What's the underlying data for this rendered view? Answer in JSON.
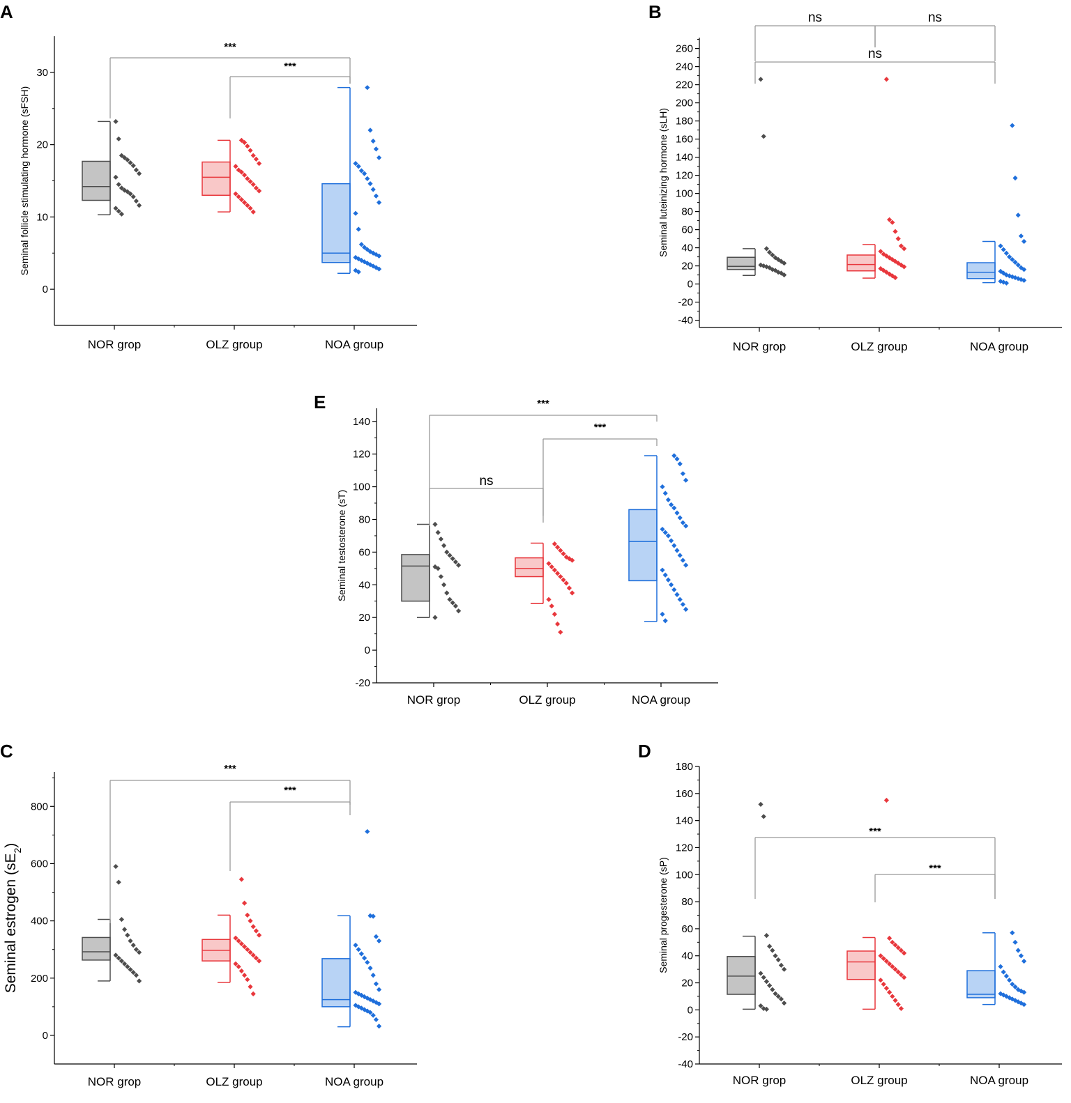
{
  "chart_data": [
    {
      "panel": "A",
      "type": "box-scatter",
      "ylabel": "Seminal follicle stimulating hormone (sFSH)",
      "ylim": [
        -5,
        35
      ],
      "yticks": [
        0,
        10,
        20,
        30
      ],
      "categories": [
        "NOR grop",
        "OLZ group",
        "NOA group"
      ],
      "colors": [
        "#4d4d4d",
        "#e8373c",
        "#1f6fdb"
      ],
      "fills": [
        "#c4c4c4",
        "#f9c8c8",
        "#b8d3f5"
      ],
      "boxes": [
        {
          "min": 10.3,
          "q1": 12.3,
          "median": 14.2,
          "q3": 17.7,
          "max": 23.2
        },
        {
          "min": 10.7,
          "q1": 13.0,
          "median": 15.5,
          "q3": 17.6,
          "max": 20.6
        },
        {
          "min": 2.2,
          "q1": 3.7,
          "median": 5.0,
          "q3": 14.6,
          "max": 27.9
        }
      ],
      "points": [
        [
          23.2,
          20.8,
          18.5,
          18.2,
          17.9,
          17.5,
          17.1,
          16.5,
          16.0,
          15.5,
          14.5,
          14.0,
          13.7,
          13.5,
          13.2,
          12.8,
          12.2,
          11.6,
          11.2,
          10.8,
          10.4
        ],
        [
          20.6,
          20.3,
          19.8,
          19.2,
          18.5,
          18.0,
          17.4,
          17.0,
          16.5,
          16.2,
          15.8,
          15.3,
          14.9,
          14.5,
          14.0,
          13.6,
          13.2,
          12.8,
          12.4,
          12.0,
          11.6,
          11.2,
          10.7
        ],
        [
          27.9,
          22.0,
          20.5,
          19.4,
          18.2,
          17.4,
          17.0,
          16.4,
          16.0,
          15.3,
          14.6,
          13.8,
          12.9,
          12.0,
          10.5,
          8.3,
          6.2,
          5.8,
          5.5,
          5.2,
          5.0,
          4.8,
          4.6,
          4.4,
          4.2,
          4.0,
          3.8,
          3.6,
          3.4,
          3.2,
          3.0,
          2.8,
          2.6,
          2.4
        ]
      ],
      "comparisons": [
        {
          "from": 0,
          "to": 2,
          "label": "***"
        },
        {
          "from": 1,
          "to": 2,
          "label": "***"
        }
      ]
    },
    {
      "panel": "B",
      "type": "box-scatter",
      "ylabel": "Seminal luteinizing hormone (sLH)",
      "ylim": [
        -48,
        272
      ],
      "yticks": [
        -40,
        -20,
        0,
        20,
        40,
        60,
        80,
        100,
        120,
        140,
        160,
        180,
        200,
        220,
        240,
        260
      ],
      "categories": [
        "NOR grop",
        "OLZ group",
        "NOA group"
      ],
      "colors": [
        "#4d4d4d",
        "#e8373c",
        "#1f6fdb"
      ],
      "fills": [
        "#c4c4c4",
        "#f9c8c8",
        "#b8d3f5"
      ],
      "boxes": [
        {
          "min": 9.5,
          "q1": 16.0,
          "median": 19.5,
          "q3": 29.5,
          "max": 39.0
        },
        {
          "min": 6.5,
          "q1": 14.5,
          "median": 21.5,
          "q3": 32.0,
          "max": 43.5
        },
        {
          "min": 1.5,
          "q1": 6.0,
          "median": 13.0,
          "q3": 23.5,
          "max": 47.0
        }
      ],
      "points": [
        [
          226,
          163,
          39,
          35,
          32,
          29,
          27,
          25,
          23,
          21,
          20,
          19,
          18,
          16,
          15,
          13,
          12,
          10
        ],
        [
          226,
          71,
          68,
          58,
          50,
          42,
          39,
          36,
          33,
          31,
          29,
          27,
          25,
          23,
          21,
          19,
          17,
          15,
          13,
          11,
          9,
          7
        ],
        [
          175,
          117,
          76,
          53,
          47,
          42,
          38,
          34,
          30,
          27,
          24,
          21,
          18,
          16,
          14,
          12,
          10,
          9,
          8,
          7,
          6,
          5,
          4,
          3,
          2,
          1
        ]
      ],
      "comparisons": [
        {
          "from": 0,
          "to": 1,
          "label": "ns"
        },
        {
          "from": 1,
          "to": 2,
          "label": "ns"
        },
        {
          "from": 0,
          "to": 2,
          "label": "ns"
        }
      ]
    },
    {
      "panel": "E",
      "type": "box-scatter",
      "ylabel": "Seminal testosterone (sT)",
      "ylim": [
        -20,
        148
      ],
      "yticks": [
        -20,
        0,
        20,
        40,
        60,
        80,
        100,
        120,
        140
      ],
      "categories": [
        "NOR grop",
        "OLZ group",
        "NOA group"
      ],
      "colors": [
        "#4d4d4d",
        "#e8373c",
        "#1f6fdb"
      ],
      "fills": [
        "#c4c4c4",
        "#f9c8c8",
        "#b8d3f5"
      ],
      "boxes": [
        {
          "min": 20.0,
          "q1": 30.0,
          "median": 51.5,
          "q3": 58.5,
          "max": 77.0
        },
        {
          "min": 28.5,
          "q1": 45.0,
          "median": 50.0,
          "q3": 56.5,
          "max": 65.5
        },
        {
          "min": 17.5,
          "q1": 42.5,
          "median": 66.5,
          "q3": 86.0,
          "max": 119.0
        }
      ],
      "points": [
        [
          77,
          72,
          68,
          64,
          60,
          58,
          56,
          54,
          52,
          51,
          50,
          45,
          40,
          35,
          31,
          29,
          27,
          24,
          20
        ],
        [
          65,
          63,
          61,
          59,
          57,
          56,
          55,
          53,
          51,
          49,
          47,
          45,
          43,
          41,
          38,
          35,
          31,
          27,
          22,
          16,
          11
        ],
        [
          119,
          117,
          114,
          108,
          104,
          100,
          96,
          92,
          89,
          87,
          84,
          81,
          78,
          76,
          74,
          72,
          70,
          67,
          64,
          61,
          58,
          55,
          52,
          49,
          46,
          43,
          40,
          37,
          34,
          31,
          28,
          25,
          22,
          18
        ]
      ],
      "comparisons": [
        {
          "from": 0,
          "to": 2,
          "label": "***"
        },
        {
          "from": 1,
          "to": 2,
          "label": "***"
        },
        {
          "from": 0,
          "to": 1,
          "label": "ns"
        }
      ]
    },
    {
      "panel": "C",
      "type": "box-scatter",
      "ylabel": "Seminal estrogen (sE",
      "ylabel_sub": "2",
      "ylabel_tail": ")",
      "ylim": [
        -100,
        920
      ],
      "yticks": [
        0,
        200,
        400,
        600,
        800
      ],
      "categories": [
        "NOR grop",
        "OLZ group",
        "NOA group"
      ],
      "colors": [
        "#4d4d4d",
        "#e8373c",
        "#1f6fdb"
      ],
      "fills": [
        "#c4c4c4",
        "#f9c8c8",
        "#b8d3f5"
      ],
      "boxes": [
        {
          "min": 190,
          "q1": 263,
          "median": 292,
          "q3": 342,
          "max": 405
        },
        {
          "min": 185,
          "q1": 260,
          "median": 297,
          "q3": 335,
          "max": 420
        },
        {
          "min": 30,
          "q1": 100,
          "median": 125,
          "q3": 268,
          "max": 418
        }
      ],
      "points": [
        [
          590,
          535,
          405,
          370,
          350,
          330,
          315,
          300,
          290,
          280,
          270,
          260,
          250,
          240,
          230,
          220,
          210,
          190
        ],
        [
          545,
          462,
          420,
          400,
          380,
          365,
          350,
          340,
          330,
          320,
          310,
          300,
          290,
          280,
          270,
          260,
          250,
          240,
          225,
          210,
          195,
          170,
          145
        ],
        [
          712,
          418,
          416,
          345,
          330,
          315,
          300,
          285,
          270,
          255,
          235,
          210,
          180,
          160,
          150,
          145,
          140,
          135,
          130,
          125,
          120,
          115,
          110,
          105,
          100,
          95,
          90,
          85,
          80,
          70,
          55,
          32
        ]
      ],
      "comparisons": [
        {
          "from": 0,
          "to": 2,
          "label": "***"
        },
        {
          "from": 1,
          "to": 2,
          "label": "***"
        }
      ]
    },
    {
      "panel": "D",
      "type": "box-scatter",
      "ylabel": "Seminal progesterone (sP)",
      "ylim": [
        -40,
        180
      ],
      "yticks": [
        -40,
        -20,
        0,
        20,
        40,
        60,
        80,
        100,
        120,
        140,
        160,
        180
      ],
      "categories": [
        "NOR grop",
        "OLZ group",
        "NOA group"
      ],
      "colors": [
        "#4d4d4d",
        "#e8373c",
        "#1f6fdb"
      ],
      "fills": [
        "#c4c4c4",
        "#f9c8c8",
        "#b8d3f5"
      ],
      "boxes": [
        {
          "min": 0.5,
          "q1": 11.5,
          "median": 25.0,
          "q3": 39.5,
          "max": 54.5
        },
        {
          "min": 0.5,
          "q1": 22.5,
          "median": 35.5,
          "q3": 43.5,
          "max": 53.5
        },
        {
          "min": 4.0,
          "q1": 9.0,
          "median": 11.5,
          "q3": 29.0,
          "max": 57.0
        }
      ],
      "points": [
        [
          152,
          143,
          55,
          47,
          44,
          40,
          37,
          33,
          30,
          27,
          24,
          21,
          18,
          15,
          12,
          10,
          8,
          5,
          3,
          1,
          0.5
        ],
        [
          155,
          53,
          50,
          48,
          46,
          44,
          42,
          40,
          38,
          36,
          34,
          32,
          30,
          28,
          26,
          24,
          22,
          19,
          16,
          13,
          10,
          7,
          4,
          1
        ],
        [
          57,
          50,
          44,
          40,
          36,
          32,
          28,
          25,
          22,
          19,
          17,
          15,
          14,
          13,
          12,
          11,
          10,
          9,
          8,
          7,
          6,
          5,
          4
        ]
      ],
      "comparisons": [
        {
          "from": 0,
          "to": 2,
          "label": "***"
        },
        {
          "from": 1,
          "to": 2,
          "label": "***"
        }
      ]
    }
  ]
}
